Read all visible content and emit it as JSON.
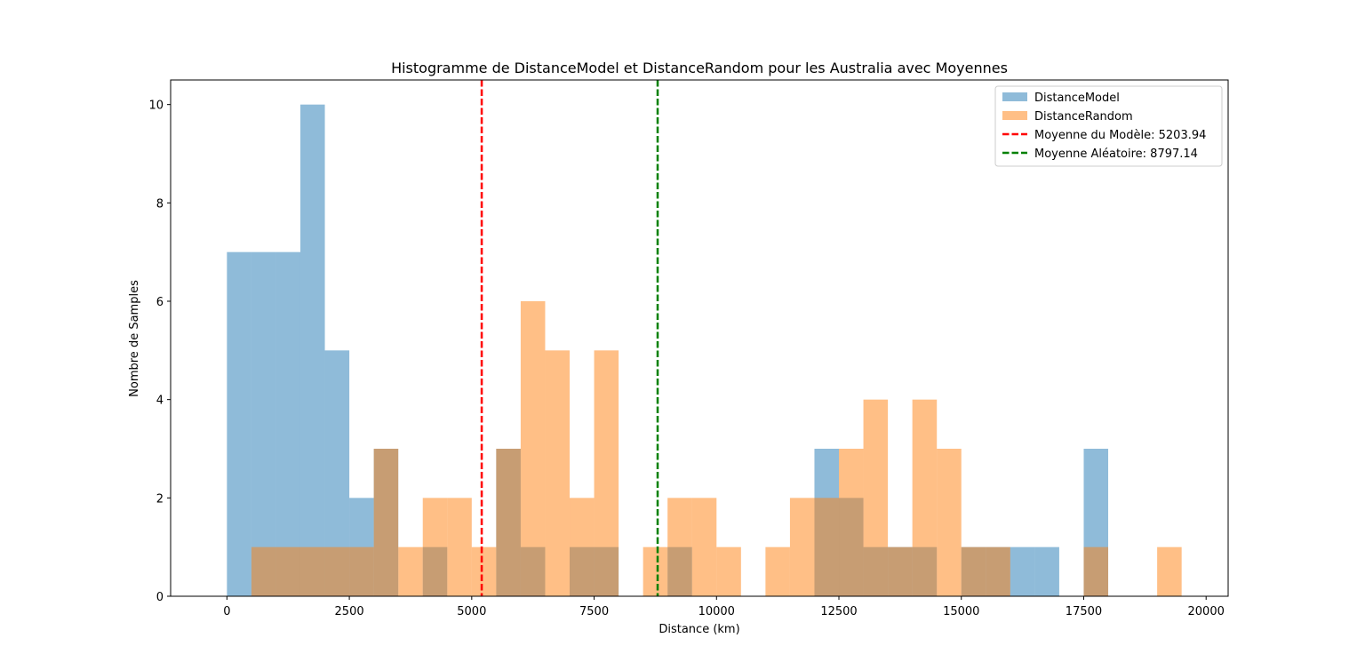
{
  "chart_data": {
    "type": "histogram",
    "title": "Histogramme de DistanceModel et DistanceRandom pour les Australia avec Moyennes",
    "xlabel": "Distance (km)",
    "ylabel": "Nombre de Samples",
    "xlim": [
      -1150,
      20450
    ],
    "ylim": [
      0,
      10.5
    ],
    "xticks": [
      0,
      2500,
      5000,
      7500,
      10000,
      12500,
      15000,
      17500,
      20000
    ],
    "yticks": [
      0,
      2,
      4,
      6,
      8,
      10
    ],
    "bin_width": 500,
    "bin_starts": [
      0,
      500,
      1000,
      1500,
      2000,
      2500,
      3000,
      3500,
      4000,
      4500,
      5000,
      5500,
      6000,
      6500,
      7000,
      7500,
      8000,
      8500,
      9000,
      9500,
      10000,
      10500,
      11000,
      11500,
      12000,
      12500,
      13000,
      13500,
      14000,
      14500,
      15000,
      15500,
      16000,
      16500,
      17000,
      17500,
      18000,
      18500,
      19000,
      19500
    ],
    "series": [
      {
        "name": "DistanceModel",
        "color": "#1f77b4",
        "alpha": 0.5,
        "counts": [
          7,
          7,
          7,
          10,
          5,
          2,
          3,
          0,
          1,
          0,
          0,
          3,
          1,
          0,
          1,
          1,
          0,
          0,
          1,
          0,
          0,
          0,
          0,
          0,
          3,
          2,
          1,
          1,
          1,
          0,
          1,
          1,
          1,
          1,
          0,
          3,
          0,
          0,
          0,
          0
        ]
      },
      {
        "name": "DistanceRandom",
        "color": "#ff7f0e",
        "alpha": 0.5,
        "counts": [
          0,
          1,
          1,
          1,
          1,
          1,
          3,
          1,
          2,
          2,
          1,
          3,
          6,
          5,
          2,
          5,
          0,
          1,
          2,
          2,
          1,
          0,
          1,
          2,
          2,
          3,
          4,
          1,
          4,
          3,
          1,
          1,
          0,
          0,
          0,
          1,
          0,
          0,
          1,
          0
        ]
      }
    ],
    "mean_lines": [
      {
        "label": "Moyenne du Modèle: 5203.94",
        "value": 5203.94,
        "color": "#ff0000"
      },
      {
        "label": "Moyenne Aléatoire: 8797.14",
        "value": 8797.14,
        "color": "#008000"
      }
    ],
    "legend": "top-right",
    "grid": false
  }
}
